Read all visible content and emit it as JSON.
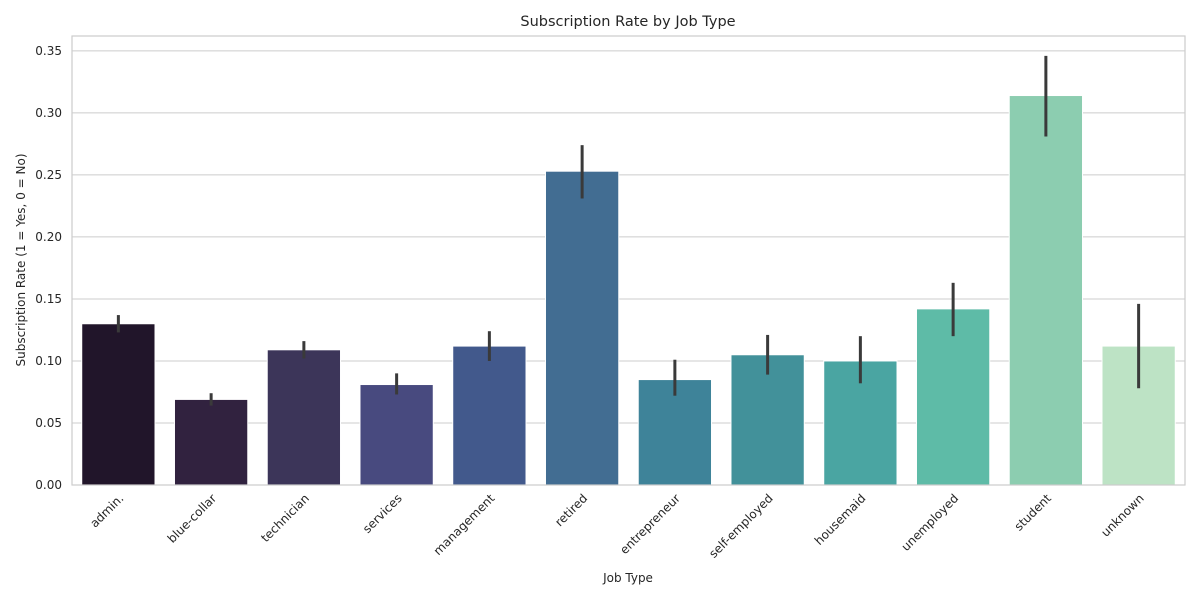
{
  "chart_data": {
    "type": "bar",
    "title": "Subscription Rate by Job Type",
    "xlabel": "Job Type",
    "ylabel": "Subscription Rate (1 = Yes, 0 = No)",
    "ylim": [
      0,
      0.362
    ],
    "yticks": [
      0.0,
      0.05,
      0.1,
      0.15,
      0.2,
      0.25,
      0.3,
      0.35
    ],
    "ytick_labels": [
      "0.00",
      "0.05",
      "0.10",
      "0.15",
      "0.20",
      "0.25",
      "0.30",
      "0.35"
    ],
    "grid": "horizontal",
    "categories": [
      "admin.",
      "blue-collar",
      "technician",
      "services",
      "management",
      "retired",
      "entrepreneur",
      "self-employed",
      "housemaid",
      "unemployed",
      "student",
      "unknown"
    ],
    "values": [
      0.13,
      0.069,
      0.109,
      0.081,
      0.112,
      0.253,
      0.085,
      0.105,
      0.1,
      0.142,
      0.314,
      0.112
    ],
    "ci_low": [
      0.123,
      0.064,
      0.102,
      0.073,
      0.1,
      0.231,
      0.072,
      0.089,
      0.082,
      0.12,
      0.281,
      0.078
    ],
    "ci_high": [
      0.137,
      0.074,
      0.116,
      0.09,
      0.124,
      0.274,
      0.101,
      0.121,
      0.12,
      0.163,
      0.346,
      0.146
    ],
    "colors": [
      "#21152a",
      "#31223f",
      "#3c3559",
      "#484a7f",
      "#42598c",
      "#426d92",
      "#3e8399",
      "#42919a",
      "#4aa5a2",
      "#5ebba7",
      "#8ccdb0",
      "#bde3c5"
    ]
  }
}
